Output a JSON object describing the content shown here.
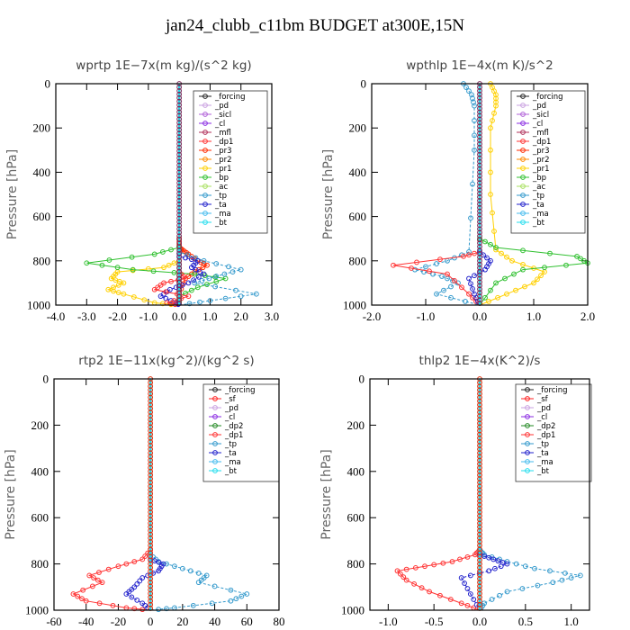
{
  "title": "jan24_clubb_c11bm  BUDGET at300E,15N",
  "colors": {
    "_forcing": "#222222",
    "_pd": "#c9a0e0",
    "_sicl": "#b060d8",
    "_cl": "#8a2be2",
    "_mfl": "#b0305a",
    "_dp1": "#ff3333",
    "_pr3": "#ff2a00",
    "_pr2": "#ff8a00",
    "_pr1": "#ffd000",
    "_bp": "#30c030",
    "_ac": "#a8e060",
    "_tp": "#3399cc",
    "_ta": "#2222cc",
    "_ma": "#44bbee",
    "_bt": "#22ddee",
    "_sf": "#ff2020",
    "_dp2": "#228822"
  },
  "chart_data": [
    {
      "type": "line",
      "title": "wprtp  1E−7x(m kg)/(s^2 kg)",
      "ylabel": "Pressure [hPa]",
      "xlim": [
        -4,
        3
      ],
      "ylim": [
        1000,
        0
      ],
      "xticks": [
        "-4.0",
        "-3.0",
        "-2.0",
        "-1.0",
        "0.0",
        "1.0",
        "2.0",
        "3.0"
      ],
      "xtick_values": [
        -4,
        -3,
        -2,
        -1,
        0,
        1,
        2,
        3
      ],
      "yticks": [
        "0",
        "200",
        "400",
        "600",
        "800",
        "1000"
      ],
      "ytick_values": [
        0,
        200,
        400,
        600,
        800,
        1000
      ],
      "legend": [
        "_forcing",
        "_pd",
        "_sicl",
        "_cl",
        "_mfl",
        "_dp1",
        "_pr3",
        "_pr2",
        "_pr1",
        "_bp",
        "_ac",
        "_tp",
        "_ta",
        "_ma",
        "_bt"
      ],
      "series": [
        {
          "name": "_forcing",
          "x": [
            0,
            0,
            0,
            0,
            0,
            0,
            0,
            0,
            0,
            0,
            0,
            0,
            0
          ],
          "y": [
            0,
            100,
            200,
            300,
            400,
            500,
            600,
            700,
            800,
            850,
            900,
            950,
            1000
          ]
        },
        {
          "name": "_pr3",
          "x": [
            0,
            0,
            0,
            0.1,
            0.3,
            0.6,
            0.9,
            0.5,
            0.2,
            0,
            0
          ],
          "y": [
            0,
            700,
            740,
            750,
            770,
            800,
            820,
            850,
            880,
            950,
            1000
          ]
        },
        {
          "name": "_pr1",
          "x": [
            0,
            0,
            -0.5,
            -2.0,
            -2.2,
            -1.8,
            -2.3,
            -1.8,
            -0.8,
            0
          ],
          "y": [
            0,
            800,
            830,
            850,
            880,
            900,
            930,
            950,
            990,
            1000
          ]
        },
        {
          "name": "_bp",
          "x": [
            0,
            0,
            -0.8,
            -3.0,
            -1.5,
            0.5,
            1.5,
            0.6,
            0,
            0
          ],
          "y": [
            0,
            740,
            770,
            810,
            840,
            860,
            880,
            920,
            960,
            1000
          ]
        },
        {
          "name": "_tp",
          "x": [
            0,
            0,
            0.8,
            2.0,
            1.2,
            0.5,
            2.5,
            1.0,
            0
          ],
          "y": [
            0,
            760,
            800,
            840,
            870,
            900,
            950,
            980,
            1000
          ]
        },
        {
          "name": "_ta",
          "x": [
            0,
            0,
            0.6,
            0.4,
            0.8,
            0.3,
            -0.3,
            -0.6,
            -0.1,
            0
          ],
          "y": [
            0,
            780,
            800,
            830,
            860,
            900,
            930,
            960,
            990,
            1000
          ]
        },
        {
          "name": "_dp1",
          "x": [
            0,
            0,
            0.2,
            -0.5,
            -0.8,
            0.3,
            -0.4,
            0
          ],
          "y": [
            0,
            850,
            880,
            900,
            930,
            960,
            990,
            1000
          ]
        },
        {
          "name": "_bt",
          "x": [
            0,
            0
          ],
          "y": [
            0,
            1000
          ]
        }
      ]
    },
    {
      "type": "line",
      "title": "wpthlp  1E−4x(m K)/s^2",
      "ylabel": "Pressure [hPa]",
      "xlim": [
        -2,
        2
      ],
      "ylim": [
        1000,
        0
      ],
      "xticks": [
        "-2.0",
        "-1.0",
        "0.0",
        "1.0",
        "2.0"
      ],
      "xtick_values": [
        -2,
        -1,
        0,
        1,
        2
      ],
      "yticks": [
        "0",
        "200",
        "400",
        "600",
        "800",
        "1000"
      ],
      "ytick_values": [
        0,
        200,
        400,
        600,
        800,
        1000
      ],
      "legend": [
        "_forcing",
        "_pd",
        "_sicl",
        "_cl",
        "_mfl",
        "_dp1",
        "_pr3",
        "_pr2",
        "_pr1",
        "_bp",
        "_ac",
        "_tp",
        "_ta",
        "_ma",
        "_bt"
      ],
      "series": [
        {
          "name": "_forcing",
          "x": [
            0,
            0
          ],
          "y": [
            0,
            1000
          ]
        },
        {
          "name": "_pd",
          "x": [
            0,
            0
          ],
          "y": [
            0,
            1000
          ]
        },
        {
          "name": "_pr1",
          "x": [
            0.2,
            0.3,
            0.3,
            0.2,
            0.2,
            0.3,
            0.6,
            1.2,
            1.0,
            0.5,
            0
          ],
          "y": [
            0,
            50,
            100,
            200,
            500,
            750,
            800,
            850,
            900,
            950,
            1000
          ]
        },
        {
          "name": "_tp",
          "x": [
            -0.3,
            -0.15,
            -0.1,
            -0.1,
            -0.2,
            -0.6,
            -1.2,
            -0.7,
            -0.4,
            -0.8,
            0
          ],
          "y": [
            0,
            50,
            100,
            300,
            760,
            800,
            840,
            870,
            900,
            950,
            1000
          ]
        },
        {
          "name": "_dp1",
          "x": [
            0,
            0,
            0,
            -0.3,
            -1.6,
            -0.6,
            -0.2,
            0
          ],
          "y": [
            0,
            600,
            760,
            780,
            820,
            860,
            950,
            1000
          ]
        },
        {
          "name": "_bp",
          "x": [
            0,
            0,
            0.3,
            1.8,
            2.0,
            0.8,
            0.3,
            0
          ],
          "y": [
            0,
            700,
            740,
            780,
            810,
            840,
            900,
            1000
          ]
        },
        {
          "name": "_ta",
          "x": [
            0,
            0,
            0.2,
            0.1,
            -0.2,
            -0.1,
            0
          ],
          "y": [
            0,
            760,
            800,
            840,
            880,
            950,
            1000
          ]
        },
        {
          "name": "_bt",
          "x": [
            0,
            0
          ],
          "y": [
            0,
            1000
          ]
        }
      ]
    },
    {
      "type": "line",
      "title": "rtp2  1E−11x(kg^2)/(kg^2 s)",
      "ylabel": "Pressure [hPa]",
      "xlim": [
        -60,
        80
      ],
      "ylim": [
        1000,
        0
      ],
      "xticks": [
        "-60",
        "-40",
        "-20",
        "0",
        "20",
        "40",
        "60",
        "80"
      ],
      "xtick_values": [
        -60,
        -40,
        -20,
        0,
        20,
        40,
        60,
        80
      ],
      "yticks": [
        "0",
        "200",
        "400",
        "600",
        "800",
        "1000"
      ],
      "ytick_values": [
        0,
        200,
        400,
        600,
        800,
        1000
      ],
      "legend": [
        "_forcing",
        "_sf",
        "_pd",
        "_cl",
        "_dp2",
        "_dp1",
        "_tp",
        "_ta",
        "_ma",
        "_bt"
      ],
      "series": [
        {
          "name": "_forcing",
          "x": [
            0,
            0
          ],
          "y": [
            0,
            1000
          ]
        },
        {
          "name": "_sf",
          "x": [
            0,
            0
          ],
          "y": [
            0,
            1000
          ]
        },
        {
          "name": "_dp1",
          "x": [
            0,
            0,
            -5,
            -20,
            -38,
            -30,
            -48,
            -40,
            -15,
            0
          ],
          "y": [
            0,
            740,
            780,
            810,
            850,
            880,
            930,
            960,
            990,
            1000
          ]
        },
        {
          "name": "_tp",
          "x": [
            0,
            0,
            5,
            20,
            35,
            30,
            60,
            50,
            15,
            0
          ],
          "y": [
            0,
            760,
            790,
            820,
            850,
            880,
            930,
            960,
            990,
            1000
          ]
        },
        {
          "name": "_ta",
          "x": [
            0,
            0,
            8,
            5,
            -5,
            -10,
            -15,
            -5,
            0
          ],
          "y": [
            0,
            780,
            800,
            830,
            860,
            900,
            930,
            970,
            1000
          ]
        },
        {
          "name": "_bt",
          "x": [
            0,
            0
          ],
          "y": [
            0,
            1000
          ]
        }
      ]
    },
    {
      "type": "line",
      "title": "thlp2  1E−4x(K^2)/s",
      "ylabel": "Pressure [hPa]",
      "xlim": [
        -1.2,
        1.2
      ],
      "ylim": [
        1000,
        0
      ],
      "xticks": [
        "-1.0",
        "-0.5",
        "0.0",
        "0.5",
        "1.0"
      ],
      "xtick_values": [
        -1,
        -0.5,
        0,
        0.5,
        1
      ],
      "yticks": [
        "0",
        "200",
        "400",
        "600",
        "800",
        "1000"
      ],
      "ytick_values": [
        0,
        200,
        400,
        600,
        800,
        1000
      ],
      "legend": [
        "_forcing",
        "_sf",
        "_pd",
        "_cl",
        "_dp2",
        "_dp1",
        "_tp",
        "_ta",
        "_ma",
        "_bt"
      ],
      "series": [
        {
          "name": "_forcing",
          "x": [
            0,
            0
          ],
          "y": [
            0,
            1000
          ]
        },
        {
          "name": "_sf",
          "x": [
            0,
            0
          ],
          "y": [
            0,
            1000
          ]
        },
        {
          "name": "_dp1",
          "x": [
            0,
            0,
            -0.05,
            -0.3,
            -0.6,
            -0.9,
            -0.8,
            -0.55,
            -0.2,
            0
          ],
          "y": [
            0,
            740,
            760,
            790,
            810,
            830,
            870,
            920,
            970,
            1000
          ]
        },
        {
          "name": "_tp",
          "x": [
            0,
            0,
            0.05,
            0.3,
            0.6,
            1.1,
            0.8,
            0.3,
            0.05,
            0
          ],
          "y": [
            0,
            740,
            760,
            790,
            820,
            850,
            880,
            920,
            970,
            1000
          ]
        },
        {
          "name": "_ta",
          "x": [
            0,
            0,
            0.15,
            0.3,
            0.1,
            -0.2,
            -0.1,
            0
          ],
          "y": [
            0,
            760,
            780,
            800,
            830,
            860,
            930,
            1000
          ]
        },
        {
          "name": "_bt",
          "x": [
            0,
            0
          ],
          "y": [
            0,
            1000
          ]
        }
      ]
    }
  ]
}
